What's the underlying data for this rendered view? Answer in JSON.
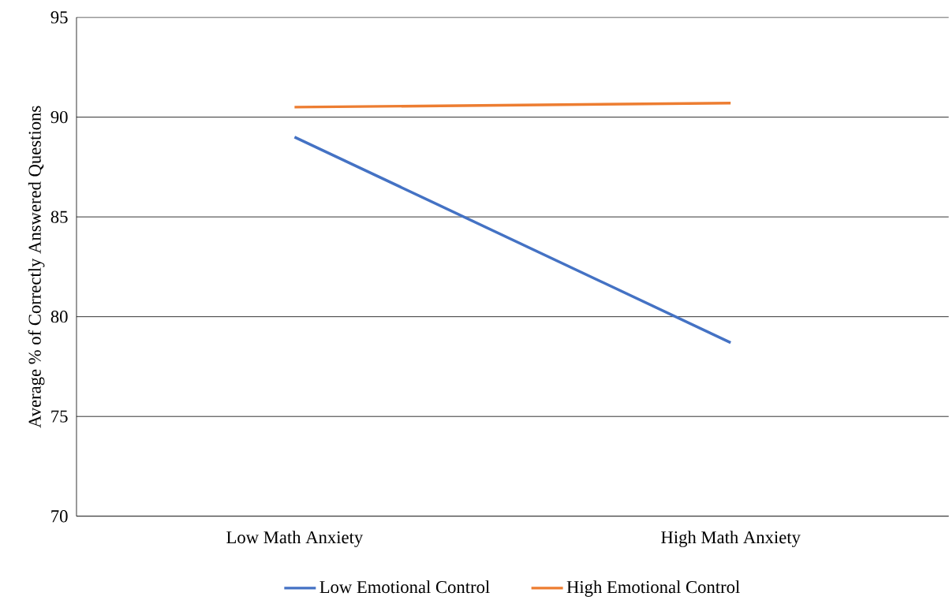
{
  "chart_data": {
    "type": "line",
    "ylabel": "Average % of Correctly Answered Questions",
    "categories": [
      "Low Math Anxiety",
      "High Math Anxiety"
    ],
    "series": [
      {
        "name": "Low Emotional Control",
        "color": "#4472c4",
        "values": [
          89.0,
          78.7
        ]
      },
      {
        "name": "High Emotional Control",
        "color": "#ed7d31",
        "values": [
          90.5,
          90.7
        ]
      }
    ],
    "ylim": [
      70,
      95
    ],
    "yticks": [
      70,
      75,
      80,
      85,
      90,
      95
    ],
    "grid": "y",
    "legend": "bottom"
  }
}
